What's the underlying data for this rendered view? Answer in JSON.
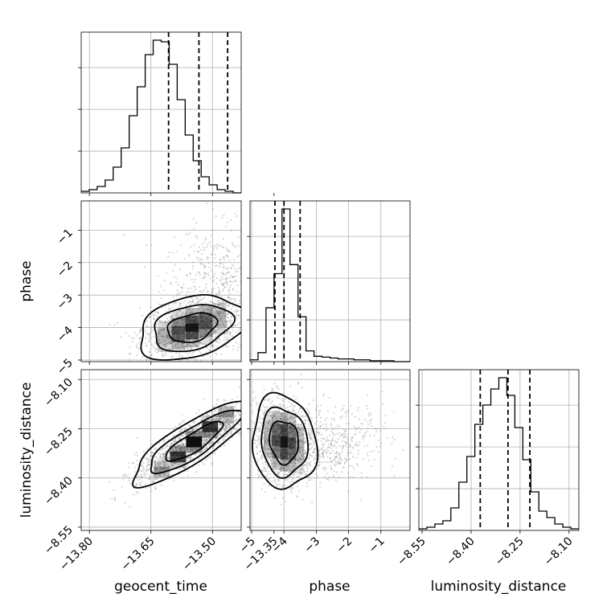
{
  "colors": {
    "frame": "#000000",
    "grid": "#b0b0b0",
    "samples": "#8c8c8c",
    "density": "#000000"
  },
  "labels": {
    "geocent_time": "geocent_time",
    "phase": "phase",
    "luminosity_distance": "luminosity_distance"
  },
  "chart_data": {
    "type": "corner",
    "parameters": [
      "geocent_time",
      "phase",
      "luminosity_distance"
    ],
    "grid": true,
    "axes": {
      "geocent_time": {
        "range": [
          -13.82,
          -13.43
        ],
        "ticks": [
          -13.8,
          -13.65,
          -13.5,
          -13.35
        ],
        "tick_labels": [
          "−13.80",
          "−13.65",
          "−13.50",
          "−13.35"
        ]
      },
      "phase": {
        "range": [
          -5.05,
          -0.1
        ],
        "ticks": [
          -5,
          -4,
          -3,
          -2,
          -1
        ],
        "tick_labels": [
          "−5",
          "−4",
          "−3",
          "−2",
          "−1"
        ]
      },
      "luminosity_distance": {
        "range": [
          -8.56,
          -8.07
        ],
        "ticks": [
          -8.55,
          -8.4,
          -8.25,
          -8.1
        ],
        "tick_labels": [
          "−8.55",
          "−8.40",
          "−8.25",
          "−8.10"
        ]
      }
    },
    "marginals": {
      "geocent_time": {
        "bin_edges": [
          -13.82,
          -13.8005,
          -13.781,
          -13.7615,
          -13.742,
          -13.7225,
          -13.703,
          -13.6835,
          -13.664,
          -13.6445,
          -13.625,
          -13.6055,
          -13.586,
          -13.5665,
          -13.547,
          -13.5275,
          -13.508,
          -13.4885,
          -13.469,
          -13.4495,
          -13.43
        ],
        "counts": [
          1,
          2,
          4,
          8,
          16,
          28,
          48,
          66,
          86,
          95,
          94,
          80,
          58,
          36,
          20,
          10,
          5,
          2,
          1,
          0
        ],
        "quantiles": [
          -13.607,
          -13.533,
          -13.463
        ]
      },
      "phase": {
        "bin_edges": [
          -5.05,
          -4.8025,
          -4.555,
          -4.3075,
          -4.06,
          -3.8125,
          -3.565,
          -3.3175,
          -3.07,
          -2.8225,
          -2.575,
          -2.3275,
          -2.08,
          -1.8325,
          -1.585,
          -1.3375,
          -1.09,
          -0.8425,
          -0.595,
          -0.3475,
          -0.1
        ],
        "counts": [
          2,
          10,
          60,
          98,
          170,
          108,
          50,
          12,
          6,
          5,
          4,
          3,
          3,
          2,
          2,
          1,
          1,
          1,
          0,
          0
        ],
        "quantiles": [
          -4.28,
          -4.0,
          -3.5
        ]
      },
      "luminosity_distance": {
        "bin_edges": [
          -8.56,
          -8.5355,
          -8.511,
          -8.4865,
          -8.462,
          -8.4375,
          -8.413,
          -8.3885,
          -8.364,
          -8.3395,
          -8.315,
          -8.2905,
          -8.266,
          -8.2415,
          -8.217,
          -8.1925,
          -8.168,
          -8.1435,
          -8.119,
          -8.0945,
          -8.07
        ],
        "counts": [
          1,
          2,
          4,
          6,
          14,
          30,
          46,
          66,
          78,
          88,
          95,
          84,
          64,
          44,
          24,
          12,
          8,
          4,
          2,
          1
        ],
        "quantiles": [
          -8.372,
          -8.287,
          -8.22
        ]
      }
    },
    "joint": [
      {
        "x": "geocent_time",
        "y": "phase",
        "mean": [
          -13.55,
          -4.0
        ],
        "std": [
          0.06,
          0.45
        ],
        "correlation": 0.3,
        "tail": {
          "mean": [
            -13.48,
            -2.4
          ],
          "std": [
            0.07,
            0.9
          ]
        }
      },
      {
        "x": "geocent_time",
        "y": "luminosity_distance",
        "mean": [
          -13.545,
          -8.29
        ],
        "std": [
          0.07,
          0.06
        ],
        "correlation": 0.85
      },
      {
        "x": "phase",
        "y": "luminosity_distance",
        "mean": [
          -4.0,
          -8.29
        ],
        "std": [
          0.45,
          0.065
        ],
        "correlation": -0.1,
        "tail": {
          "mean": [
            -2.5,
            -8.3
          ],
          "std": [
            0.8,
            0.06
          ]
        }
      }
    ],
    "contour_levels_sigma": [
      1.0,
      1.6,
      2.2
    ]
  }
}
